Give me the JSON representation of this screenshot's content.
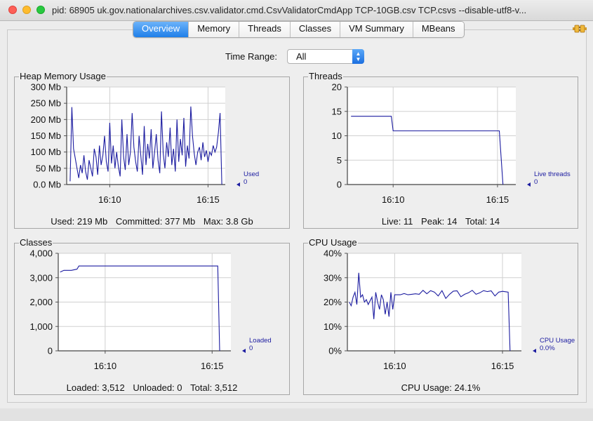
{
  "window": {
    "title": "pid: 68905 uk.gov.nationalarchives.csv.validator.cmd.CsvValidatorCmdApp TCP-10GB.csv TCP.csvs --disable-utf8-v..."
  },
  "tabs": [
    "Overview",
    "Memory",
    "Threads",
    "Classes",
    "VM Summary",
    "MBeans"
  ],
  "active_tab": "Overview",
  "time_range": {
    "label": "Time Range:",
    "value": "All"
  },
  "colors": {
    "series": "#1c1ca0",
    "accent": "#1f7fe9",
    "grid": "#d0d0d0"
  },
  "panels": {
    "heap": {
      "title": "Heap Memory Usage",
      "legend_name": "Used",
      "legend_value": "0",
      "footer": [
        "Used: 219 Mb",
        "Committed: 377 Mb",
        "Max: 3.8 Gb"
      ]
    },
    "threads": {
      "title": "Threads",
      "legend_name": "Live threads",
      "legend_value": "0",
      "footer": [
        "Live: 11",
        "Peak: 14",
        "Total: 14"
      ]
    },
    "classes": {
      "title": "Classes",
      "legend_name": "Loaded",
      "legend_value": "0",
      "footer": [
        "Loaded: 3,512",
        "Unloaded: 0",
        "Total: 3,512"
      ]
    },
    "cpu": {
      "title": "CPU Usage",
      "legend_name": "CPU Usage",
      "legend_value": "0.0%",
      "footer": [
        "CPU Usage: 24.1%"
      ]
    }
  },
  "chart_data": [
    {
      "id": "heap",
      "type": "line",
      "y_ticks": [
        "0.0 Mb",
        "50 Mb",
        "100 Mb",
        "150 Mb",
        "200 Mb",
        "250 Mb",
        "300 Mb"
      ],
      "ylim": [
        0,
        300
      ],
      "y_step": 50,
      "x_ticks": [
        "16:10",
        "16:15"
      ],
      "xlim": [
        0,
        9.2
      ],
      "x_tick_positions": [
        2.5,
        8.2
      ],
      "grid": true,
      "series": [
        {
          "name": "Used",
          "x": [
            0.2,
            0.3,
            0.4,
            0.5,
            0.6,
            0.7,
            0.8,
            0.9,
            1.0,
            1.1,
            1.2,
            1.3,
            1.4,
            1.5,
            1.6,
            1.7,
            1.8,
            1.9,
            2.0,
            2.1,
            2.2,
            2.3,
            2.4,
            2.5,
            2.6,
            2.7,
            2.8,
            2.9,
            3.0,
            3.1,
            3.2,
            3.3,
            3.4,
            3.5,
            3.6,
            3.7,
            3.8,
            3.9,
            4.0,
            4.1,
            4.2,
            4.3,
            4.4,
            4.5,
            4.6,
            4.7,
            4.8,
            4.9,
            5.0,
            5.1,
            5.2,
            5.3,
            5.4,
            5.5,
            5.6,
            5.7,
            5.8,
            5.9,
            6.0,
            6.1,
            6.2,
            6.3,
            6.4,
            6.5,
            6.6,
            6.7,
            6.8,
            6.9,
            7.0,
            7.1,
            7.2,
            7.3,
            7.4,
            7.5,
            7.6,
            7.7,
            7.8,
            7.9,
            8.0,
            8.1,
            8.2,
            8.3,
            8.4,
            8.5,
            8.6,
            8.7,
            8.8,
            8.9,
            9.0
          ],
          "values": [
            10,
            238,
            110,
            80,
            50,
            20,
            60,
            35,
            90,
            40,
            15,
            75,
            50,
            25,
            110,
            85,
            30,
            120,
            60,
            90,
            150,
            70,
            40,
            190,
            65,
            120,
            50,
            100,
            55,
            25,
            200,
            85,
            45,
            155,
            60,
            100,
            220,
            115,
            70,
            40,
            150,
            90,
            30,
            180,
            60,
            125,
            80,
            170,
            50,
            100,
            155,
            75,
            35,
            225,
            95,
            50,
            130,
            85,
            175,
            60,
            110,
            40,
            200,
            70,
            140,
            90,
            205,
            55,
            120,
            80,
            240,
            150,
            95,
            60,
            100,
            115,
            75,
            130,
            85,
            105,
            70,
            100,
            90,
            120,
            100,
            115,
            160,
            220,
            0
          ]
        }
      ]
    },
    {
      "id": "threads",
      "type": "line",
      "y_ticks": [
        "0",
        "5",
        "10",
        "15",
        "20"
      ],
      "ylim": [
        0,
        20
      ],
      "y_step": 5,
      "x_ticks": [
        "16:10",
        "16:15"
      ],
      "xlim": [
        0,
        9.2
      ],
      "x_tick_positions": [
        2.5,
        8.2
      ],
      "grid": true,
      "series": [
        {
          "name": "Live threads",
          "x": [
            0.2,
            2.4,
            2.5,
            8.3,
            8.5
          ],
          "values": [
            14,
            14,
            11,
            11,
            0
          ]
        }
      ]
    },
    {
      "id": "classes",
      "type": "line",
      "y_ticks": [
        "0",
        "1,000",
        "2,000",
        "3,000",
        "4,000"
      ],
      "ylim": [
        0,
        4000
      ],
      "y_step": 1000,
      "x_ticks": [
        "16:10",
        "16:15"
      ],
      "xlim": [
        0,
        9.2
      ],
      "x_tick_positions": [
        2.5,
        8.2
      ],
      "grid": true,
      "series": [
        {
          "name": "Loaded",
          "x": [
            0.1,
            0.3,
            0.7,
            1.0,
            1.1,
            8.5,
            8.6
          ],
          "values": [
            3230,
            3300,
            3300,
            3350,
            3480,
            3480,
            0
          ]
        }
      ]
    },
    {
      "id": "cpu",
      "type": "line",
      "y_ticks": [
        "0%",
        "10%",
        "20%",
        "30%",
        "40%"
      ],
      "ylim": [
        0,
        40
      ],
      "y_step": 10,
      "x_ticks": [
        "16:10",
        "16:15"
      ],
      "xlim": [
        0,
        9.2
      ],
      "x_tick_positions": [
        2.5,
        8.2
      ],
      "grid": true,
      "series": [
        {
          "name": "CPU Usage",
          "x": [
            0.1,
            0.2,
            0.3,
            0.4,
            0.5,
            0.6,
            0.7,
            0.8,
            0.9,
            1.0,
            1.1,
            1.2,
            1.3,
            1.4,
            1.5,
            1.6,
            1.7,
            1.8,
            1.9,
            2.0,
            2.1,
            2.2,
            2.3,
            2.4,
            2.5,
            2.6,
            2.8,
            3.0,
            3.2,
            3.4,
            3.6,
            3.8,
            4.0,
            4.2,
            4.4,
            4.6,
            4.8,
            5.0,
            5.2,
            5.4,
            5.6,
            5.8,
            6.0,
            6.2,
            6.4,
            6.6,
            6.8,
            7.0,
            7.2,
            7.4,
            7.6,
            7.8,
            8.0,
            8.2,
            8.4,
            8.5,
            8.6
          ],
          "values": [
            20,
            18.5,
            22,
            24,
            19,
            32,
            22,
            23,
            20,
            21,
            19,
            20.5,
            22,
            13,
            24,
            20,
            17,
            23,
            21,
            15,
            20,
            14,
            24,
            17,
            23,
            23,
            23,
            23.5,
            23,
            23.2,
            23.4,
            23.2,
            24.8,
            23.4,
            24.7,
            24.1,
            22.5,
            24.7,
            21.5,
            23.2,
            24.5,
            24.6,
            22.2,
            23.2,
            23.8,
            24.8,
            23.2,
            23.8,
            24.7,
            24.3,
            24.6,
            22.5,
            24.1,
            24.4,
            24.2,
            24.1,
            0
          ]
        }
      ]
    }
  ]
}
